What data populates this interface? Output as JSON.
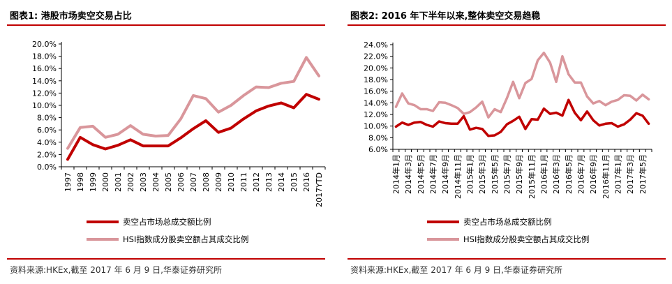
{
  "charts": [
    {
      "title": "图表1:  港股市场卖空交易占比",
      "source": "资料来源:HKEx,截至 2017 年 6 月 9 日,华泰证券研究所",
      "chart_data": {
        "type": "line",
        "categories": [
          "1997",
          "1998",
          "1999",
          "2000",
          "2001",
          "2002",
          "2003",
          "2004",
          "2005",
          "2006",
          "2007",
          "2008",
          "2009",
          "2010",
          "2011",
          "2012",
          "2013",
          "2014",
          "2015",
          "2016",
          "2017YTD"
        ],
        "y_ticks": [
          "0.0%",
          "2.0%",
          "4.0%",
          "6.0%",
          "8.0%",
          "10.0%",
          "12.0%",
          "14.0%",
          "16.0%",
          "18.0%",
          "20.0%"
        ],
        "ylim": [
          0,
          20
        ],
        "y_unit": "%",
        "grid": false,
        "legend_position": "bottom",
        "series": [
          {
            "name": "卖空占市场总成交额比例",
            "color": "#c00000",
            "values": [
              1.2,
              4.8,
              3.6,
              2.9,
              3.5,
              4.4,
              3.4,
              3.4,
              3.4,
              4.7,
              6.2,
              7.5,
              5.6,
              6.3,
              7.8,
              9.1,
              9.9,
              10.4,
              9.6,
              11.8,
              11.0
            ]
          },
          {
            "name": "HSI指数成分股卖空额占其成交比例",
            "color": "#d9969b",
            "values": [
              3.0,
              6.4,
              6.6,
              4.8,
              5.3,
              6.7,
              5.3,
              5.0,
              5.1,
              7.8,
              11.6,
              11.1,
              8.9,
              10.0,
              11.6,
              13.0,
              12.9,
              13.6,
              13.9,
              17.8,
              14.8
            ]
          }
        ]
      }
    },
    {
      "title": "图表2:  2016 年下半年以来,整体卖空交易趋稳",
      "source": "资料来源:HKEx,截至 2017 年 6 月 9 日,华泰证券研究所",
      "chart_data": {
        "type": "line",
        "x": [
          "2014-01",
          "2014-02",
          "2014-03",
          "2014-04",
          "2014-05",
          "2014-06",
          "2014-07",
          "2014-08",
          "2014-09",
          "2014-10",
          "2014-11",
          "2014-12",
          "2015-01",
          "2015-02",
          "2015-03",
          "2015-04",
          "2015-05",
          "2015-06",
          "2015-07",
          "2015-08",
          "2015-09",
          "2015-10",
          "2015-11",
          "2015-12",
          "2016-01",
          "2016-02",
          "2016-03",
          "2016-04",
          "2016-05",
          "2016-06",
          "2016-07",
          "2016-08",
          "2016-09",
          "2016-10",
          "2016-11",
          "2016-12",
          "2017-01",
          "2017-02",
          "2017-03",
          "2017-04",
          "2017-05",
          "2017-06"
        ],
        "x_tick_labels": [
          "2014年1月",
          "2014年3月",
          "2014年5月",
          "2014年7月",
          "2014年9月",
          "2014年11月",
          "2015年1月",
          "2015年3月",
          "2015年5月",
          "2015年7月",
          "2015年9月",
          "2015年11月",
          "2016年1月",
          "2016年3月",
          "2016年5月",
          "2016年7月",
          "2016年9月",
          "2016年11月",
          "2017年1月",
          "2017年3月",
          "2017年5月"
        ],
        "y_ticks": [
          "6.0%",
          "8.0%",
          "10.0%",
          "12.0%",
          "14.0%",
          "16.0%",
          "18.0%",
          "20.0%",
          "22.0%",
          "24.0%"
        ],
        "ylim": [
          6,
          24
        ],
        "y_unit": "%",
        "grid": false,
        "legend_position": "bottom",
        "series": [
          {
            "name": "卖空占市场总成交额比例",
            "color": "#c00000",
            "values": [
              9.9,
              10.6,
              10.2,
              10.6,
              10.7,
              10.2,
              9.9,
              10.8,
              10.5,
              10.4,
              10.4,
              11.7,
              9.4,
              9.7,
              9.5,
              8.3,
              8.4,
              9.0,
              10.3,
              10.9,
              11.6,
              9.5,
              11.2,
              11.1,
              13.0,
              12.1,
              12.3,
              11.8,
              14.5,
              12.3,
              11.0,
              12.5,
              11.0,
              10.1,
              10.4,
              10.5,
              9.9,
              10.3,
              11.1,
              12.2,
              11.8,
              10.4
            ]
          },
          {
            "name": "HSI指数成分股卖空额占其成交比例",
            "color": "#d9969b",
            "values": [
              13.3,
              15.6,
              13.9,
              13.6,
              12.9,
              12.9,
              12.6,
              14.1,
              14.0,
              13.6,
              13.1,
              12.1,
              12.4,
              13.2,
              14.2,
              11.5,
              12.9,
              12.4,
              14.8,
              17.6,
              14.8,
              17.4,
              18.1,
              21.3,
              22.6,
              20.9,
              17.6,
              22.0,
              18.9,
              17.5,
              17.5,
              15.1,
              13.9,
              14.3,
              13.6,
              14.2,
              14.5,
              15.3,
              15.2,
              14.4,
              15.4,
              14.6
            ]
          }
        ]
      }
    }
  ]
}
